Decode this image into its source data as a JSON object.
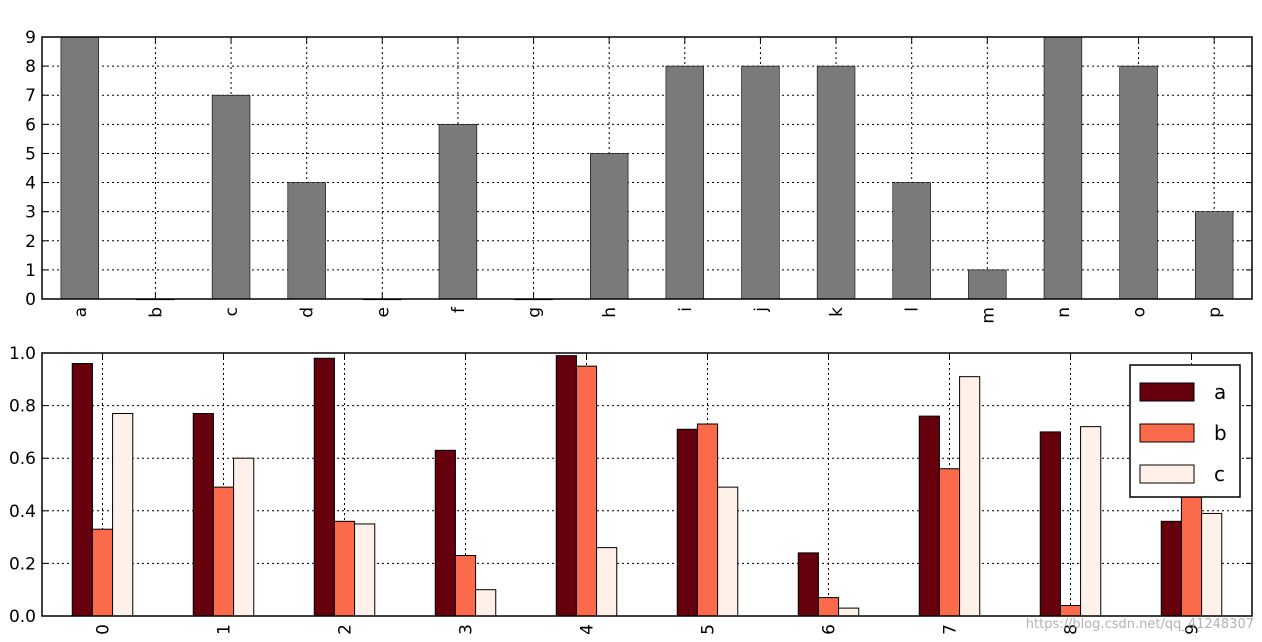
{
  "chart_data": [
    {
      "type": "bar",
      "categories": [
        "a",
        "b",
        "c",
        "d",
        "e",
        "f",
        "g",
        "h",
        "i",
        "j",
        "k",
        "l",
        "m",
        "n",
        "o",
        "p"
      ],
      "values": [
        9,
        0,
        7,
        4,
        0,
        6,
        0,
        5,
        8,
        8,
        8,
        4,
        1,
        9,
        8,
        3
      ],
      "ylim": [
        0,
        9
      ],
      "yticks": [
        "0",
        "1",
        "2",
        "3",
        "4",
        "5",
        "6",
        "7",
        "8",
        "9"
      ],
      "grid": true,
      "bar_color": "#7a7a7a",
      "title": "",
      "xlabel": "",
      "ylabel": ""
    },
    {
      "type": "bar",
      "categories": [
        "0",
        "1",
        "2",
        "3",
        "4",
        "5",
        "6",
        "7",
        "8",
        "9"
      ],
      "series": [
        {
          "name": "a",
          "color": "#67000d",
          "values": [
            0.96,
            0.77,
            0.98,
            0.63,
            0.99,
            0.71,
            0.24,
            0.76,
            0.7,
            0.36
          ]
        },
        {
          "name": "b",
          "color": "#fb6a4a",
          "values": [
            0.33,
            0.49,
            0.36,
            0.23,
            0.95,
            0.73,
            0.07,
            0.56,
            0.04,
            0.5
          ]
        },
        {
          "name": "c",
          "color": "#fff0ea",
          "values": [
            0.77,
            0.6,
            0.35,
            0.1,
            0.26,
            0.49,
            0.03,
            0.91,
            0.72,
            0.39
          ]
        }
      ],
      "ylim": [
        0,
        1.0
      ],
      "yticks": [
        "0.0",
        "0.2",
        "0.4",
        "0.6",
        "0.8",
        "1.0"
      ],
      "grid": true,
      "legend": "top-right",
      "title": "",
      "xlabel": "",
      "ylabel": ""
    }
  ],
  "watermark": "https://blog.csdn.net/qq_41248307"
}
